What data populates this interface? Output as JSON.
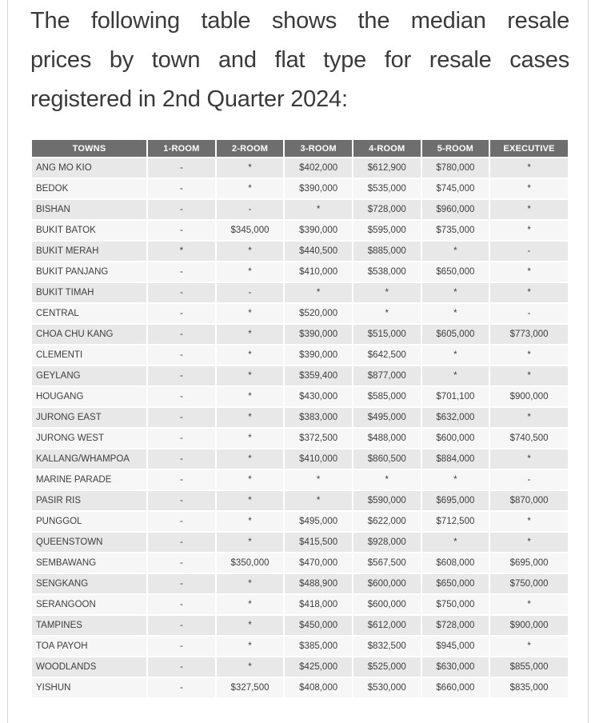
{
  "heading": {
    "full_text": "The following table shows the median resale prices by town and flat type for resale cases registered in 2nd Quarter 2024:",
    "lines": [
      "The following table shows the median resale",
      "prices by town and flat type for resale cases",
      "registered in 2nd Quarter 2024:"
    ]
  },
  "table": {
    "columns": [
      "TOWNS",
      "1-ROOM",
      "2-ROOM",
      "3-ROOM",
      "4-ROOM",
      "5-ROOM",
      "EXECUTIVE"
    ],
    "rows": [
      {
        "town": "ANG MO KIO",
        "values": [
          "-",
          "*",
          "$402,000",
          "$612,900",
          "$780,000",
          "*"
        ]
      },
      {
        "town": "BEDOK",
        "values": [
          "-",
          "*",
          "$390,000",
          "$535,000",
          "$745,000",
          "*"
        ]
      },
      {
        "town": "BISHAN",
        "values": [
          "-",
          "-",
          "*",
          "$728,000",
          "$960,000",
          "*"
        ]
      },
      {
        "town": "BUKIT BATOK",
        "values": [
          "-",
          "$345,000",
          "$390,000",
          "$595,000",
          "$735,000",
          "*"
        ]
      },
      {
        "town": "BUKIT MERAH",
        "values": [
          "*",
          "*",
          "$440,500",
          "$885,000",
          "*",
          "-"
        ]
      },
      {
        "town": "BUKIT PANJANG",
        "values": [
          "-",
          "*",
          "$410,000",
          "$538,000",
          "$650,000",
          "*"
        ]
      },
      {
        "town": "BUKIT TIMAH",
        "values": [
          "-",
          "-",
          "*",
          "*",
          "*",
          "*"
        ]
      },
      {
        "town": "CENTRAL",
        "values": [
          "-",
          "*",
          "$520,000",
          "*",
          "*",
          "-"
        ]
      },
      {
        "town": "CHOA CHU KANG",
        "values": [
          "-",
          "*",
          "$390,000",
          "$515,000",
          "$605,000",
          "$773,000"
        ]
      },
      {
        "town": "CLEMENTI",
        "values": [
          "-",
          "*",
          "$390,000",
          "$642,500",
          "*",
          "*"
        ]
      },
      {
        "town": "GEYLANG",
        "values": [
          "-",
          "*",
          "$359,400",
          "$877,000",
          "*",
          "*"
        ]
      },
      {
        "town": "HOUGANG",
        "values": [
          "-",
          "*",
          "$430,000",
          "$585,000",
          "$701,100",
          "$900,000"
        ]
      },
      {
        "town": "JURONG EAST",
        "values": [
          "-",
          "*",
          "$383,000",
          "$495,000",
          "$632,000",
          "*"
        ]
      },
      {
        "town": "JURONG WEST",
        "values": [
          "-",
          "*",
          "$372,500",
          "$488,000",
          "$600,000",
          "$740,500"
        ]
      },
      {
        "town": "KALLANG/WHAMPOA",
        "values": [
          "-",
          "*",
          "$410,000",
          "$860,500",
          "$884,000",
          "*"
        ]
      },
      {
        "town": "MARINE PARADE",
        "values": [
          "-",
          "*",
          "*",
          "*",
          "*",
          "-"
        ]
      },
      {
        "town": "PASIR RIS",
        "values": [
          "-",
          "*",
          "*",
          "$590,000",
          "$695,000",
          "$870,000"
        ]
      },
      {
        "town": "PUNGGOL",
        "values": [
          "-",
          "*",
          "$495,000",
          "$622,000",
          "$712,500",
          "*"
        ]
      },
      {
        "town": "QUEENSTOWN",
        "values": [
          "-",
          "*",
          "$415,500",
          "$928,000",
          "*",
          "*"
        ]
      },
      {
        "town": "SEMBAWANG",
        "values": [
          "-",
          "$350,000",
          "$470,000",
          "$567,500",
          "$608,000",
          "$695,000"
        ]
      },
      {
        "town": "SENGKANG",
        "values": [
          "-",
          "*",
          "$488,900",
          "$600,000",
          "$650,000",
          "$750,000"
        ]
      },
      {
        "town": "SERANGOON",
        "values": [
          "-",
          "*",
          "$418,000",
          "$600,000",
          "$750,000",
          "*"
        ]
      },
      {
        "town": "TAMPINES",
        "values": [
          "-",
          "*",
          "$450,000",
          "$612,000",
          "$728,000",
          "$900,000"
        ]
      },
      {
        "town": "TOA PAYOH",
        "values": [
          "-",
          "*",
          "$385,000",
          "$832,500",
          "$945,000",
          "*"
        ]
      },
      {
        "town": "WOODLANDS",
        "values": [
          "-",
          "*",
          "$425,000",
          "$525,000",
          "$630,000",
          "$855,000"
        ]
      },
      {
        "town": "YISHUN",
        "values": [
          "-",
          "$327,500",
          "$408,000",
          "$530,000",
          "$660,000",
          "$835,000"
        ]
      }
    ]
  },
  "colors": {
    "header_bg": "#6f6e6e",
    "header_text": "#ffffff",
    "row_odd_bg": "#e8e8e8",
    "row_even_bg": "#f6f6f6",
    "body_text": "#3e3e3e",
    "heading_text": "#3a3a3a",
    "edge_line": "#d2d2d2"
  }
}
